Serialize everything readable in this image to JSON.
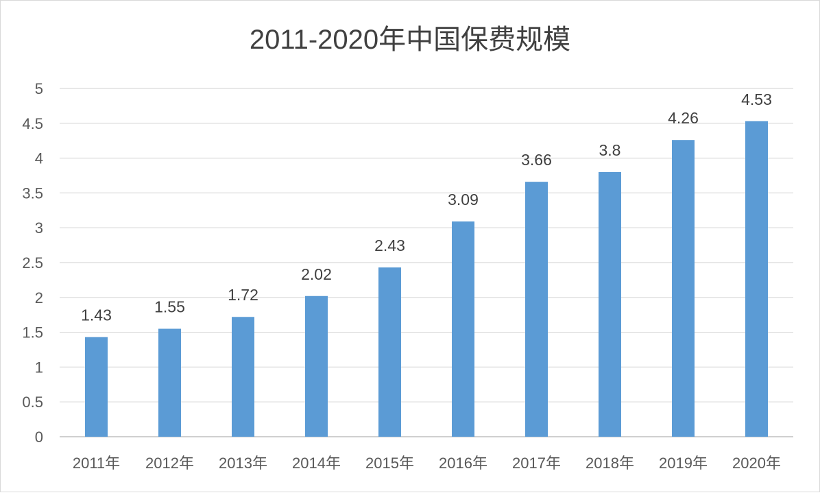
{
  "chart_data": {
    "type": "bar",
    "title": "2011-2020年中国保费规模",
    "xlabel": "",
    "ylabel": "",
    "categories": [
      "2011年",
      "2012年",
      "2013年",
      "2014年",
      "2015年",
      "2016年",
      "2017年",
      "2018年",
      "2019年",
      "2020年"
    ],
    "values": [
      1.43,
      1.55,
      1.72,
      2.02,
      2.43,
      3.09,
      3.66,
      3.8,
      4.26,
      4.53
    ],
    "ylim": [
      0,
      5
    ],
    "yticks": [
      "0",
      "0.5",
      "1",
      "1.5",
      "2",
      "2.5",
      "3",
      "3.5",
      "4",
      "4.5",
      "5"
    ],
    "data_labels": [
      "1.43",
      "1.55",
      "1.72",
      "2.02",
      "2.43",
      "3.09",
      "3.66",
      "3.8",
      "4.26",
      "4.53"
    ],
    "grid": true,
    "legend": "none",
    "bar_color": "#5b9bd5"
  }
}
